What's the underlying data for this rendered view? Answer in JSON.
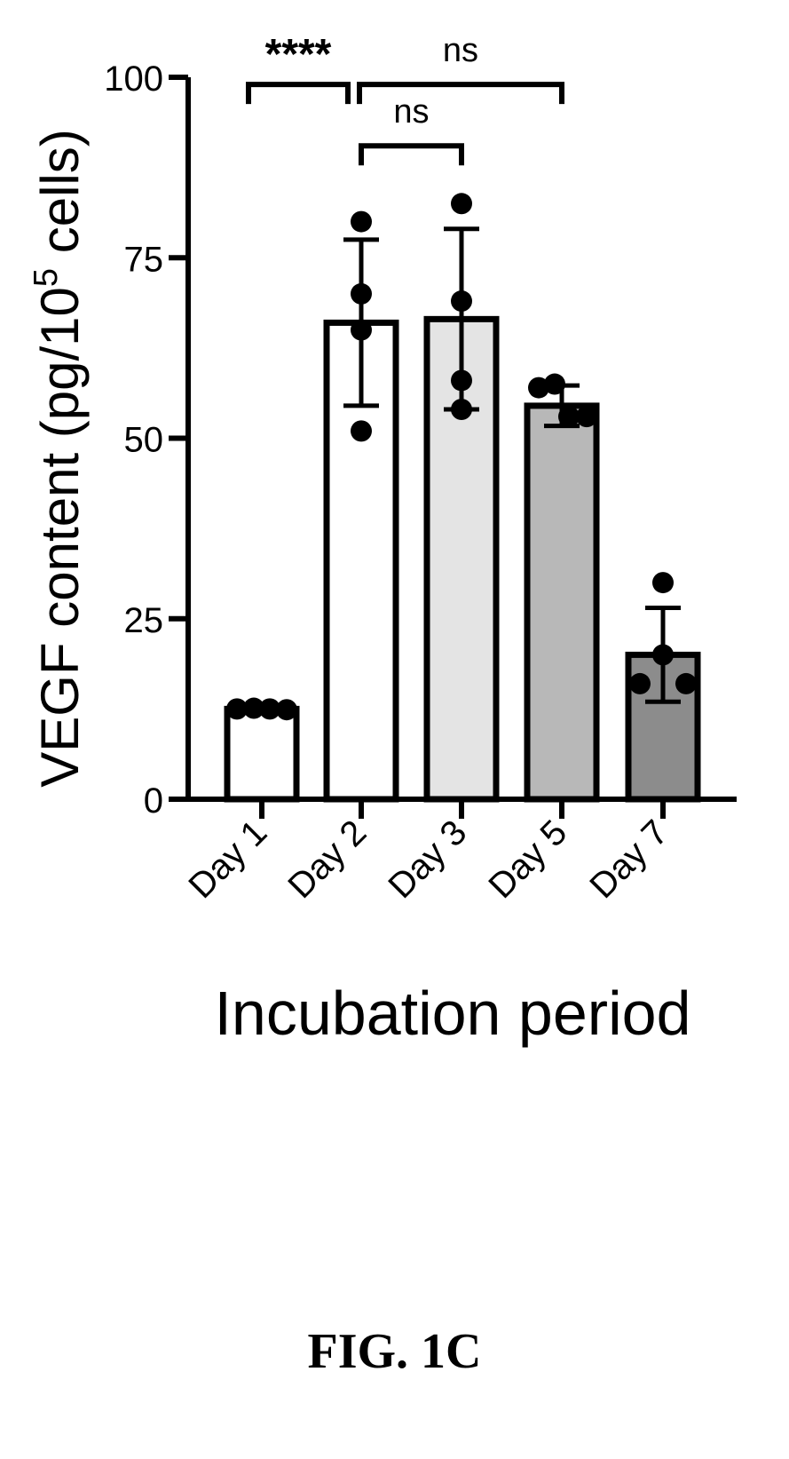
{
  "figure_label": "FIG. 1C",
  "chart_data": {
    "type": "bar",
    "xlabel": "Incubation period",
    "ylabel_main": "VEGF content (pg/10",
    "ylabel_sup": "5",
    "ylabel_end": " cells)",
    "ylim": [
      0,
      100
    ],
    "yticks": [
      0,
      25,
      50,
      75,
      100
    ],
    "grid": false,
    "categories": [
      "Day 1",
      "Day 2",
      "Day 3",
      "Day 5",
      "Day 7"
    ],
    "values": [
      12.5,
      66,
      66.5,
      54.5,
      20
    ],
    "error_sd": [
      0.5,
      11.5,
      12.5,
      2.8,
      6.5
    ],
    "fills": [
      "#ffffff",
      "#ffffff",
      "#e4e4e4",
      "#b8b8b8",
      "#8c8c8c"
    ],
    "points": [
      [
        12.5,
        12.6,
        12.5,
        12.4
      ],
      [
        80,
        70,
        65,
        51
      ],
      [
        82.5,
        69,
        58,
        54
      ],
      [
        57,
        57.5,
        53,
        53
      ],
      [
        30,
        20,
        16,
        16
      ]
    ],
    "significance": [
      {
        "from": "Day 1",
        "to": "Day 2",
        "label": "****",
        "y": 99
      },
      {
        "from": "Day 2",
        "to": "Day 5",
        "label": "ns",
        "y": 99
      },
      {
        "from": "Day 2",
        "to": "Day 3",
        "label": "ns",
        "y": 90.5
      }
    ]
  }
}
